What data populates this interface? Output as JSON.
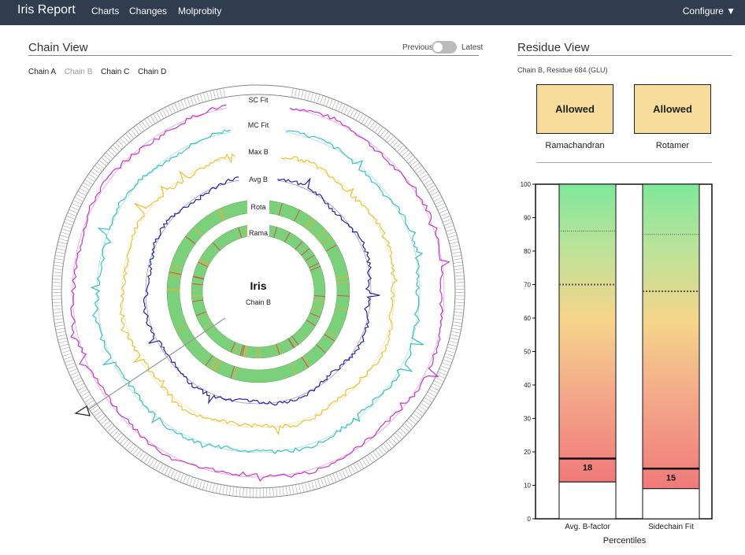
{
  "navbar": {
    "brand": "Iris Report",
    "links": [
      "Charts",
      "Changes",
      "Molprobity"
    ],
    "configure": "Configure ▼"
  },
  "chain_view": {
    "title": "Chain View",
    "toggle_left": "Previous",
    "toggle_right": "Latest",
    "tabs": [
      {
        "label": "Chain A",
        "active": false
      },
      {
        "label": "Chain B",
        "active": true
      },
      {
        "label": "Chain C",
        "active": false
      },
      {
        "label": "Chain D",
        "active": false
      }
    ],
    "center_title": "Iris",
    "center_subtitle": "Chain B",
    "rings": [
      {
        "label": "SC Fit",
        "color": "#cc33cc"
      },
      {
        "label": "MC Fit",
        "color": "#33c2c2"
      },
      {
        "label": "Max B",
        "color": "#f0c030"
      },
      {
        "label": "Avg B",
        "color": "#2222aa"
      },
      {
        "label": "Rota",
        "color": "#7ad17a"
      },
      {
        "label": "Rama",
        "color": "#7ad17a"
      }
    ]
  },
  "residue_view": {
    "title": "Residue View",
    "residue_label": "Chain B, Residue 684 (GLU)",
    "cards": [
      {
        "value": "Allowed",
        "caption": "Ramachandran"
      },
      {
        "value": "Allowed",
        "caption": "Rotamer"
      }
    ],
    "chart_data": {
      "type": "bar",
      "categories": [
        "Avg. B-factor",
        "Sidechain Fit"
      ],
      "values": [
        18,
        15
      ],
      "xlabel": "Percentiles",
      "ylim": [
        0,
        100
      ],
      "yticks": [
        0,
        10,
        20,
        30,
        40,
        50,
        60,
        70,
        80,
        90,
        100
      ],
      "reference_lines": [
        {
          "bar": "Avg. B-factor",
          "lower": 11,
          "mid": 70,
          "upper": 86
        },
        {
          "bar": "Sidechain Fit",
          "lower": 9,
          "mid": 68,
          "upper": 85
        }
      ],
      "colors": {
        "low": "#f08080",
        "mid": "#f5d58a",
        "high": "#7ee89a"
      }
    }
  }
}
